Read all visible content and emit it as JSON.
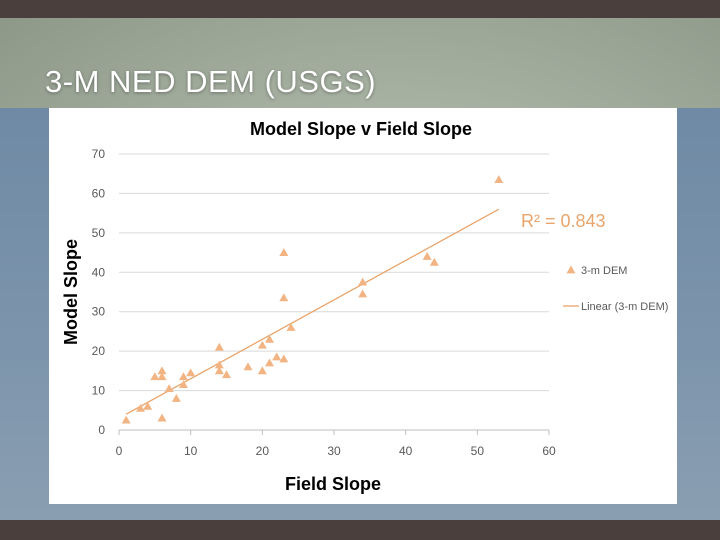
{
  "slide": {
    "title": "3-M NED DEM (USGS)"
  },
  "colors": {
    "marker": "#f2b483",
    "trendline": "#e9a56c",
    "grid": "#d9d9d9",
    "axis_text": "#595959",
    "title_text": "#000000"
  },
  "chart_data": {
    "type": "scatter",
    "title": "Model Slope v Field Slope",
    "xlabel": "Field Slope",
    "ylabel": "Model Slope",
    "xlim": [
      0,
      60
    ],
    "ylim": [
      0,
      70
    ],
    "x_ticks": [
      "0",
      "10",
      "20",
      "30",
      "40",
      "50",
      "60"
    ],
    "y_ticks": [
      "0",
      "10",
      "20",
      "30",
      "40",
      "50",
      "60",
      "70"
    ],
    "grid": "horizontal",
    "legend_position": "right",
    "series": [
      {
        "name": "3-m DEM",
        "marker": "triangle",
        "points": [
          [
            1,
            2.5
          ],
          [
            3,
            5.5
          ],
          [
            4,
            6
          ],
          [
            5,
            13.5
          ],
          [
            6,
            13.5
          ],
          [
            6,
            15
          ],
          [
            6,
            3
          ],
          [
            7,
            10.5
          ],
          [
            8,
            8
          ],
          [
            9,
            11.5
          ],
          [
            9,
            13.5
          ],
          [
            10,
            14.5
          ],
          [
            14,
            21
          ],
          [
            14,
            16.5
          ],
          [
            14,
            15
          ],
          [
            15,
            14
          ],
          [
            18,
            16
          ],
          [
            20,
            21.5
          ],
          [
            20,
            15
          ],
          [
            21,
            23
          ],
          [
            21,
            17
          ],
          [
            22,
            18.5
          ],
          [
            23,
            18
          ],
          [
            23,
            45
          ],
          [
            23,
            33.5
          ],
          [
            24,
            26
          ],
          [
            34,
            37.5
          ],
          [
            34,
            34.5
          ],
          [
            43,
            44
          ],
          [
            44,
            42.5
          ],
          [
            53,
            63.5
          ]
        ]
      }
    ],
    "trendline": {
      "name": "Linear (3-m DEM)",
      "x": [
        1,
        53
      ],
      "y": [
        4,
        56
      ],
      "r_squared_label": "R² = 0.843"
    }
  }
}
